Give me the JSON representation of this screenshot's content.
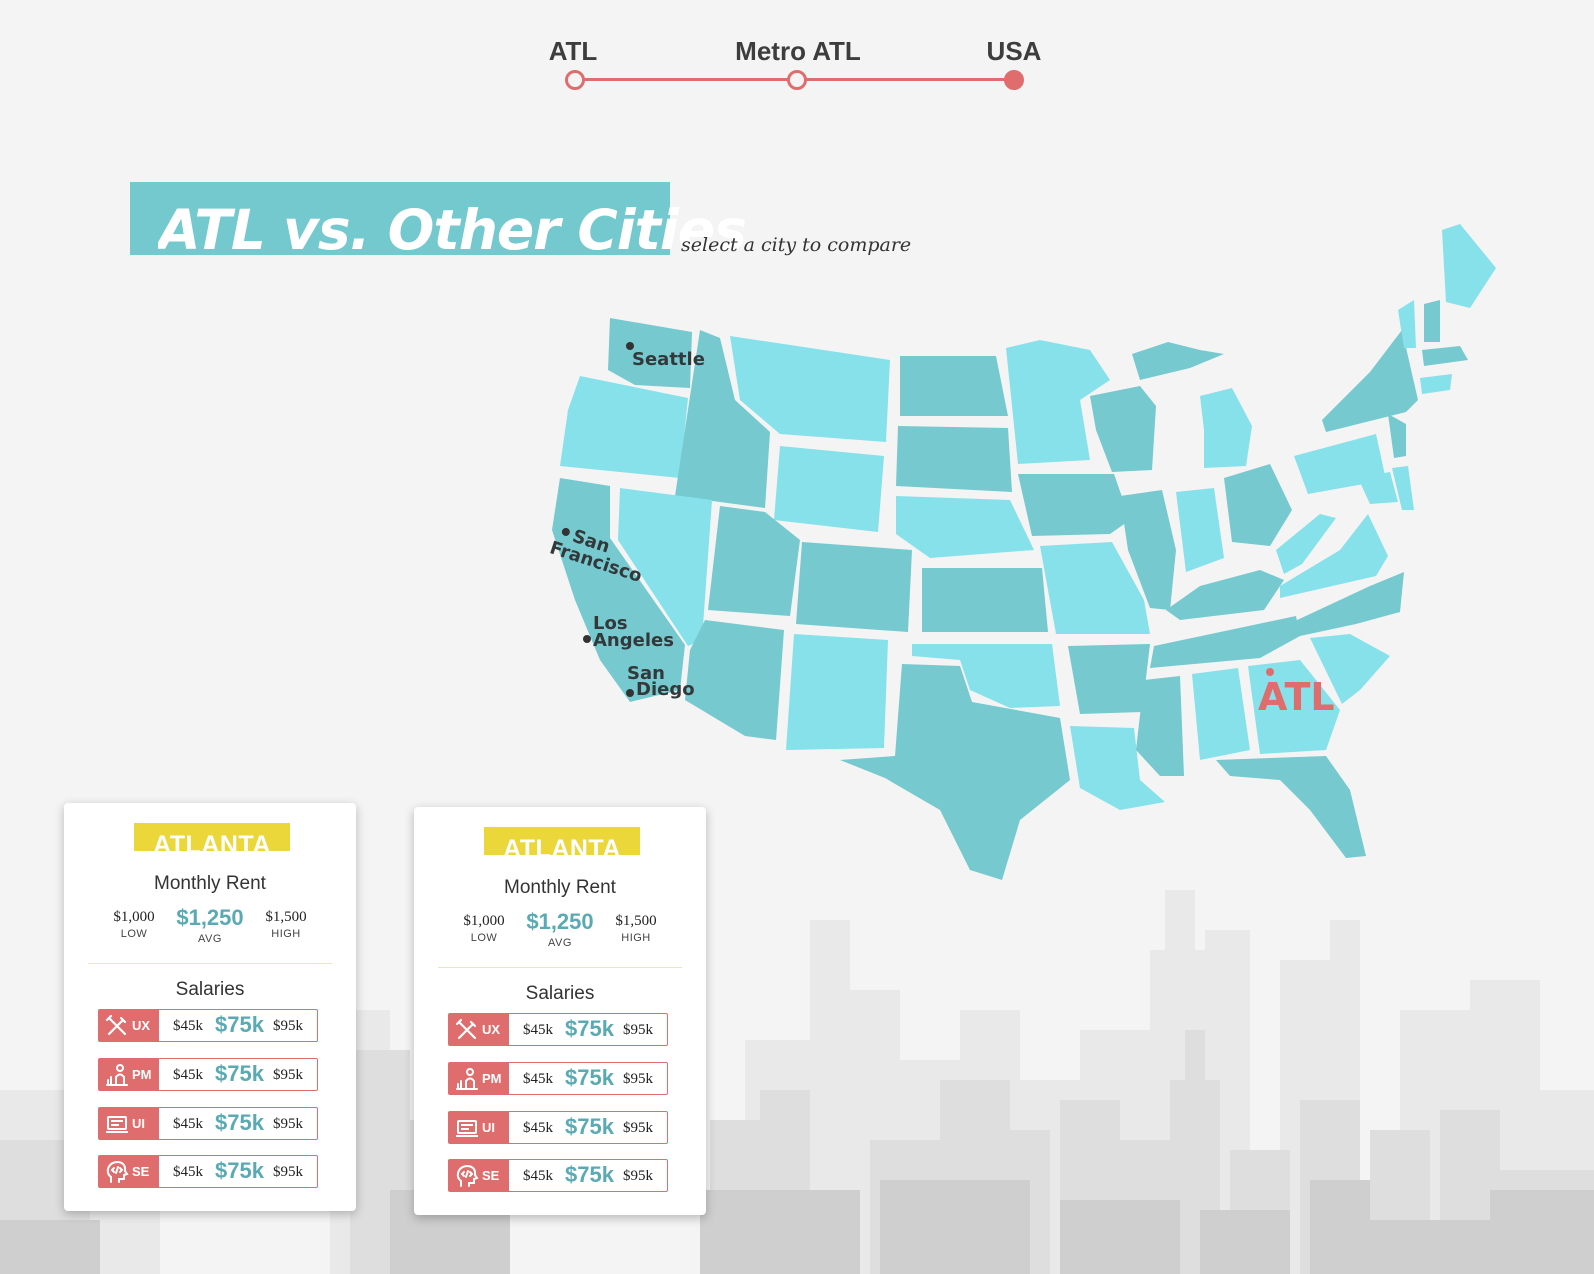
{
  "stepper": {
    "steps": [
      {
        "label": "ATL",
        "active": false
      },
      {
        "label": "Metro ATL",
        "active": false
      },
      {
        "label": "USA",
        "active": true
      }
    ],
    "accent_color": "#e06d6d"
  },
  "header": {
    "title": "ATL vs. Other Cities",
    "subtitle": "select a city to compare",
    "banner_color": "#74c9cf"
  },
  "map": {
    "cities": [
      {
        "name": "Seattle",
        "lines": [
          "Seattle"
        ]
      },
      {
        "name": "San Francisco",
        "lines": [
          "San",
          "Francisco"
        ]
      },
      {
        "name": "Los Angeles",
        "lines": [
          "Los",
          "Angeles"
        ]
      },
      {
        "name": "San Diego",
        "lines": [
          "San",
          "Diego"
        ]
      }
    ],
    "highlight": "ATL",
    "colors": {
      "state_dark": "#76c9cf",
      "state_light": "#86e1ea",
      "highlight": "#e06d6d"
    }
  },
  "cards": [
    {
      "city": "ATLANTA",
      "rent_title": "Monthly Rent",
      "rent": {
        "low": "$1,000",
        "avg": "$1,250",
        "high": "$1,500",
        "low_label": "LOW",
        "avg_label": "AVG",
        "high_label": "HIGH"
      },
      "salaries_title": "Salaries",
      "salaries": [
        {
          "code": "UX",
          "icon": "design-tools-icon",
          "low": "$45k",
          "avg": "$75k",
          "high": "$95k"
        },
        {
          "code": "PM",
          "icon": "presenter-chart-icon",
          "low": "$45k",
          "avg": "$75k",
          "high": "$95k"
        },
        {
          "code": "UI",
          "icon": "laptop-icon",
          "low": "$45k",
          "avg": "$75k",
          "high": "$95k"
        },
        {
          "code": "SE",
          "icon": "code-head-icon",
          "low": "$45k",
          "avg": "$75k",
          "high": "$95k"
        }
      ]
    },
    {
      "city": "ATLANTA",
      "rent_title": "Monthly Rent",
      "rent": {
        "low": "$1,000",
        "avg": "$1,250",
        "high": "$1,500",
        "low_label": "LOW",
        "avg_label": "AVG",
        "high_label": "HIGH"
      },
      "salaries_title": "Salaries",
      "salaries": [
        {
          "code": "UX",
          "icon": "design-tools-icon",
          "low": "$45k",
          "avg": "$75k",
          "high": "$95k"
        },
        {
          "code": "PM",
          "icon": "presenter-chart-icon",
          "low": "$45k",
          "avg": "$75k",
          "high": "$95k"
        },
        {
          "code": "UI",
          "icon": "laptop-icon",
          "low": "$45k",
          "avg": "$75k",
          "high": "$95k"
        },
        {
          "code": "SE",
          "icon": "code-head-icon",
          "low": "$45k",
          "avg": "$75k",
          "high": "$95k"
        }
      ]
    }
  ]
}
